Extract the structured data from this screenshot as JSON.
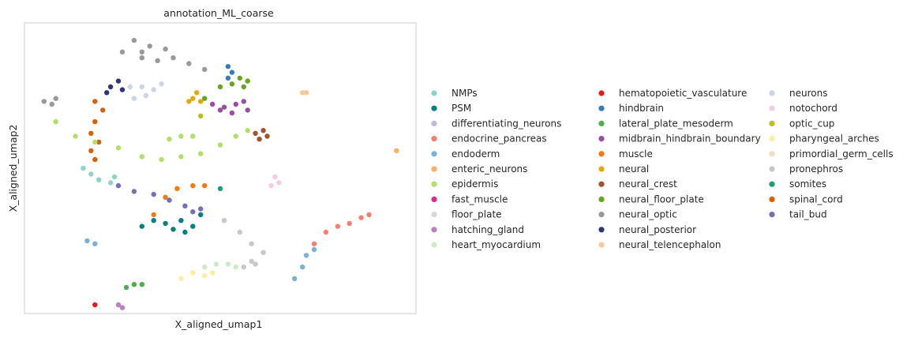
{
  "chart_data": {
    "type": "scatter",
    "title": "annotation_ML_coarse",
    "xlabel": "X_aligned_umap1",
    "ylabel": "X_aligned_umap2",
    "xlim": [
      0,
      100
    ],
    "ylim": [
      0,
      100
    ],
    "grid": false,
    "legend_placement": "right",
    "legend": [
      {
        "name": "NMPs",
        "color": "#8dd3c7"
      },
      {
        "name": "PSM",
        "color": "#008080"
      },
      {
        "name": "differentiating_neurons",
        "color": "#bcbddc"
      },
      {
        "name": "endocrine_pancreas",
        "color": "#f67f6f"
      },
      {
        "name": "endoderm",
        "color": "#7eb0d6"
      },
      {
        "name": "enteric_neurons",
        "color": "#fdae61"
      },
      {
        "name": "epidermis",
        "color": "#b3de69"
      },
      {
        "name": "fast_muscle",
        "color": "#e7298a"
      },
      {
        "name": "floor_plate",
        "color": "#d9d9d9"
      },
      {
        "name": "hatching_gland",
        "color": "#bc80bd"
      },
      {
        "name": "heart_myocardium",
        "color": "#ccebc5"
      },
      {
        "name": "hematopoietic_vasculature",
        "color": "#e31a1c"
      },
      {
        "name": "hindbrain",
        "color": "#377eb8"
      },
      {
        "name": "lateral_plate_mesoderm",
        "color": "#4daf4a"
      },
      {
        "name": "midbrain_hindbrain_boundary",
        "color": "#984ea3"
      },
      {
        "name": "muscle",
        "color": "#f07b0f"
      },
      {
        "name": "neural",
        "color": "#e3a90b"
      },
      {
        "name": "neural_crest",
        "color": "#a0522d"
      },
      {
        "name": "neural_floor_plate",
        "color": "#66a61e"
      },
      {
        "name": "neural_optic",
        "color": "#999999"
      },
      {
        "name": "neural_posterior",
        "color": "#2f3576"
      },
      {
        "name": "neural_telencephalon",
        "color": "#fdc79a"
      },
      {
        "name": "neurons",
        "color": "#cbd5e8"
      },
      {
        "name": "notochord",
        "color": "#f4cae4"
      },
      {
        "name": "optic_cup",
        "color": "#bcbd22"
      },
      {
        "name": "pharyngeal_arches",
        "color": "#ffeda0"
      },
      {
        "name": "primordial_germ_cells",
        "color": "#f2dcc6"
      },
      {
        "name": "pronephros",
        "color": "#c7c7c7"
      },
      {
        "name": "somites",
        "color": "#1b9e77"
      },
      {
        "name": "spinal_cord",
        "color": "#d95f02"
      },
      {
        "name": "tail_bud",
        "color": "#7570b3"
      }
    ],
    "series": [
      {
        "color": "#999999",
        "points": [
          [
            28,
            94
          ],
          [
            32,
            92
          ],
          [
            36,
            91
          ],
          [
            30,
            90
          ],
          [
            38,
            88
          ],
          [
            34,
            87
          ],
          [
            42,
            86
          ],
          [
            46,
            84
          ],
          [
            25,
            90
          ],
          [
            30,
            88
          ]
        ]
      },
      {
        "color": "#999999",
        "points": [
          [
            5,
            73
          ],
          [
            8,
            74
          ],
          [
            7,
            72
          ]
        ]
      },
      {
        "color": "#377eb8",
        "points": [
          [
            52,
            85
          ],
          [
            53,
            83
          ],
          [
            52,
            81
          ]
        ]
      },
      {
        "color": "#66a61e",
        "points": [
          [
            46,
            74
          ],
          [
            50,
            78
          ],
          [
            53,
            79
          ],
          [
            55,
            81
          ],
          [
            57,
            80
          ],
          [
            56,
            78
          ]
        ]
      },
      {
        "color": "#984ea3",
        "points": [
          [
            48,
            72
          ],
          [
            51,
            71
          ],
          [
            54,
            72
          ],
          [
            56,
            73
          ],
          [
            57,
            70
          ],
          [
            53,
            69
          ],
          [
            50,
            70
          ]
        ]
      },
      {
        "color": "#e3a90b",
        "points": [
          [
            43,
            74
          ],
          [
            44,
            76
          ],
          [
            45,
            73
          ],
          [
            42,
            73
          ]
        ]
      },
      {
        "color": "#2f3576",
        "points": [
          [
            22,
            78
          ],
          [
            24,
            80
          ],
          [
            25,
            77
          ],
          [
            21,
            76
          ]
        ]
      },
      {
        "color": "#cbd5e8",
        "points": [
          [
            27,
            78
          ],
          [
            30,
            78
          ],
          [
            33,
            77
          ],
          [
            31,
            75
          ],
          [
            28,
            74
          ],
          [
            35,
            79
          ]
        ]
      },
      {
        "color": "#d95f02",
        "points": [
          [
            18,
            73
          ],
          [
            20,
            70
          ],
          [
            18,
            66
          ],
          [
            17,
            62
          ],
          [
            19,
            59
          ],
          [
            17,
            56
          ],
          [
            18,
            53
          ]
        ]
      },
      {
        "color": "#b3de69",
        "points": [
          [
            8,
            66
          ],
          [
            13,
            61
          ],
          [
            18,
            59
          ],
          [
            24,
            57
          ],
          [
            30,
            54
          ],
          [
            35,
            53
          ],
          [
            40,
            54
          ],
          [
            45,
            55
          ],
          [
            50,
            58
          ],
          [
            54,
            61
          ],
          [
            57,
            63
          ],
          [
            37,
            60
          ],
          [
            40,
            61
          ],
          [
            43,
            61
          ]
        ]
      },
      {
        "color": "#a0522d",
        "points": [
          [
            59,
            62
          ],
          [
            61,
            63
          ],
          [
            62,
            61
          ],
          [
            60,
            60
          ]
        ]
      },
      {
        "color": "#8dd3c7",
        "points": [
          [
            15,
            50
          ],
          [
            17,
            48
          ],
          [
            19,
            46
          ],
          [
            22,
            45
          ],
          [
            23,
            47
          ]
        ]
      },
      {
        "color": "#7570b3",
        "points": [
          [
            24,
            44
          ],
          [
            28,
            42
          ],
          [
            33,
            41
          ],
          [
            37,
            39
          ],
          [
            41,
            37
          ],
          [
            43,
            35
          ],
          [
            45,
            36
          ]
        ]
      },
      {
        "color": "#f07b0f",
        "points": [
          [
            33,
            34
          ],
          [
            36,
            40
          ],
          [
            39,
            43
          ],
          [
            43,
            44
          ],
          [
            46,
            44
          ]
        ]
      },
      {
        "color": "#008080",
        "points": [
          [
            30,
            30
          ],
          [
            33,
            32
          ],
          [
            36,
            31
          ],
          [
            40,
            32
          ],
          [
            43,
            30
          ],
          [
            45,
            34
          ],
          [
            38,
            29
          ],
          [
            41,
            28
          ]
        ]
      },
      {
        "color": "#1b9e77",
        "points": [
          [
            50,
            43
          ]
        ]
      },
      {
        "color": "#c7c7c7",
        "points": [
          [
            51,
            32
          ],
          [
            55,
            28
          ],
          [
            58,
            24
          ],
          [
            61,
            21
          ],
          [
            58,
            18
          ],
          [
            56,
            16
          ],
          [
            59,
            17
          ]
        ]
      },
      {
        "color": "#ccebc5",
        "points": [
          [
            46,
            16
          ],
          [
            49,
            17
          ],
          [
            52,
            17
          ],
          [
            54,
            16
          ]
        ]
      },
      {
        "color": "#ffeda0",
        "points": [
          [
            40,
            12
          ],
          [
            43,
            14
          ],
          [
            46,
            13
          ],
          [
            48,
            14
          ]
        ]
      },
      {
        "color": "#f4cae4",
        "points": [
          [
            63,
            44
          ],
          [
            65,
            45
          ],
          [
            64,
            47
          ]
        ]
      },
      {
        "color": "#f67f6f",
        "points": [
          [
            74,
            24
          ],
          [
            77,
            28
          ],
          [
            80,
            30
          ],
          [
            83,
            31
          ],
          [
            86,
            33
          ],
          [
            88,
            34
          ]
        ]
      },
      {
        "color": "#7eb0d6",
        "points": [
          [
            69,
            12
          ],
          [
            71,
            16
          ],
          [
            72,
            20
          ],
          [
            74,
            22
          ]
        ]
      },
      {
        "color": "#7eb0d6",
        "points": [
          [
            16,
            25
          ],
          [
            18,
            24
          ]
        ]
      },
      {
        "color": "#4daf4a",
        "points": [
          [
            26,
            9
          ],
          [
            28,
            10
          ],
          [
            30,
            10
          ]
        ]
      },
      {
        "color": "#e31a1c",
        "points": [
          [
            18,
            3
          ]
        ]
      },
      {
        "color": "#bc80bd",
        "points": [
          [
            24,
            3
          ],
          [
            25,
            2
          ]
        ]
      },
      {
        "color": "#fdc79a",
        "points": [
          [
            71,
            76
          ],
          [
            72,
            76
          ]
        ]
      },
      {
        "color": "#fdae61",
        "points": [
          [
            95,
            56
          ]
        ]
      },
      {
        "color": "#bcbd22",
        "points": [
          [
            45,
            68
          ]
        ]
      }
    ]
  }
}
